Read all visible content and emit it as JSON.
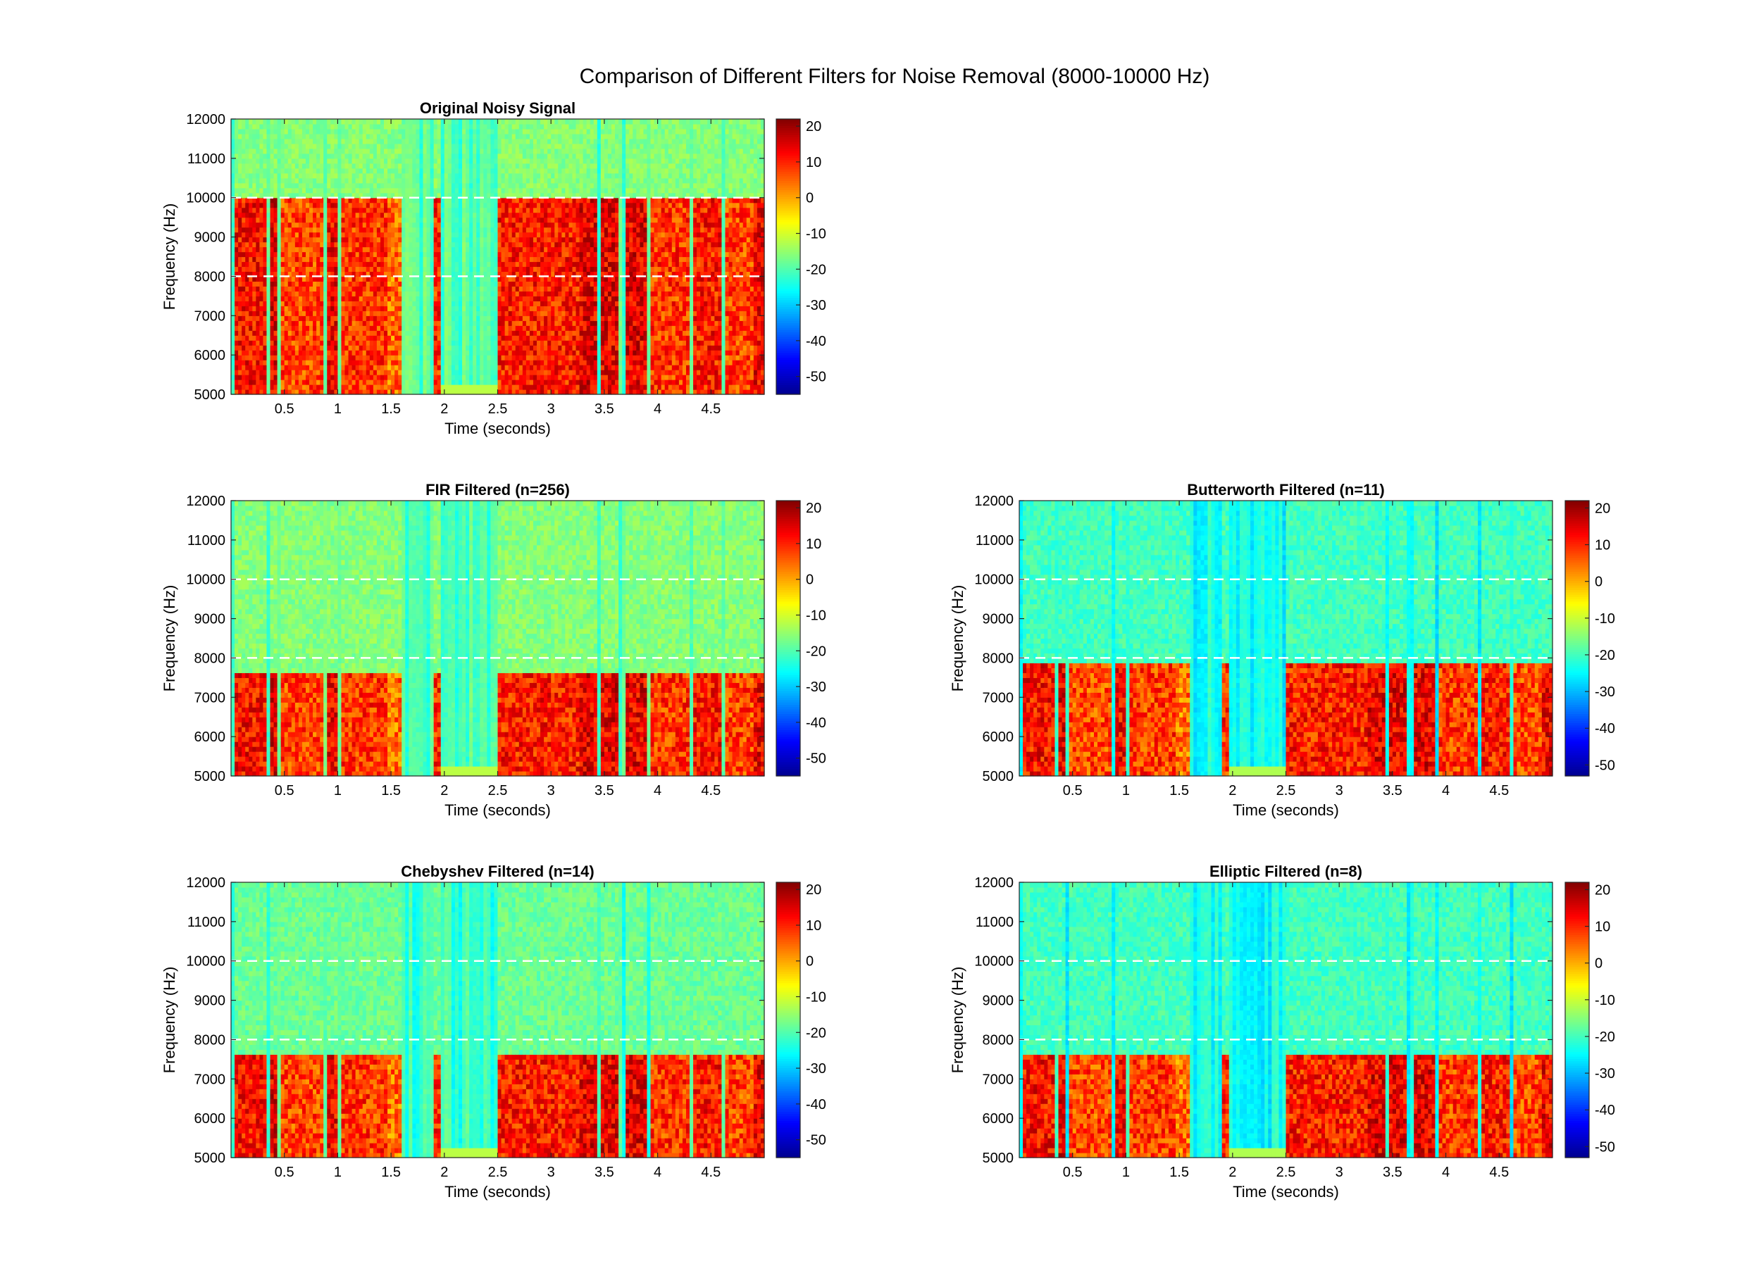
{
  "figure": {
    "title": "Comparison of Different Filters for Noise Removal (8000-10000 Hz)"
  },
  "colormap": [
    "#00008f",
    "#0000ff",
    "#0080ff",
    "#00ffff",
    "#80ff80",
    "#ffff00",
    "#ff8000",
    "#ff0000",
    "#800000"
  ],
  "chart_data": [
    {
      "type": "heatmap",
      "title": "Original Noisy Signal",
      "xlabel": "Time (seconds)",
      "ylabel": "Frequency (Hz)",
      "xlim": [
        0,
        5
      ],
      "ylim": [
        5000,
        12000
      ],
      "xticks": [
        0.5,
        1,
        1.5,
        2,
        2.5,
        3,
        3.5,
        4,
        4.5
      ],
      "xtick_labels": [
        "0.5",
        "1",
        "1.5",
        "2",
        "2.5",
        "3",
        "3.5",
        "4",
        "4.5"
      ],
      "yticks": [
        5000,
        6000,
        7000,
        8000,
        9000,
        10000,
        11000,
        12000
      ],
      "ytick_labels": [
        "5000",
        "6000",
        "7000",
        "8000",
        "9000",
        "10000",
        "11000",
        "12000"
      ],
      "colorbar": {
        "ticks": [
          20,
          10,
          0,
          -10,
          -20,
          -30,
          -40,
          -50
        ],
        "tick_labels": [
          "20",
          "10",
          "0",
          "-10",
          "-20",
          "-30",
          "-40",
          "-50"
        ],
        "range": [
          -55,
          22
        ]
      },
      "reference_lines_hz": [
        8000,
        10000
      ],
      "energy_band_top_hz": 10000,
      "background_db": -20
    },
    {
      "type": "heatmap",
      "title": "FIR Filtered (n=256)",
      "xlabel": "Time (seconds)",
      "ylabel": "Frequency (Hz)",
      "xlim": [
        0,
        5
      ],
      "ylim": [
        5000,
        12000
      ],
      "xticks": [
        0.5,
        1,
        1.5,
        2,
        2.5,
        3,
        3.5,
        4,
        4.5
      ],
      "xtick_labels": [
        "0.5",
        "1",
        "1.5",
        "2",
        "2.5",
        "3",
        "3.5",
        "4",
        "4.5"
      ],
      "yticks": [
        5000,
        6000,
        7000,
        8000,
        9000,
        10000,
        11000,
        12000
      ],
      "ytick_labels": [
        "5000",
        "6000",
        "7000",
        "8000",
        "9000",
        "10000",
        "11000",
        "12000"
      ],
      "colorbar": {
        "ticks": [
          20,
          10,
          0,
          -10,
          -20,
          -30,
          -40,
          -50
        ],
        "tick_labels": [
          "20",
          "10",
          "0",
          "-10",
          "-20",
          "-30",
          "-40",
          "-50"
        ],
        "range": [
          -55,
          22
        ]
      },
      "reference_lines_hz": [
        8000,
        10000
      ],
      "energy_band_top_hz": 7650,
      "background_db": -20
    },
    {
      "type": "heatmap",
      "title": "Butterworth Filtered (n=11)",
      "xlabel": "Time (seconds)",
      "ylabel": "Frequency (Hz)",
      "xlim": [
        0,
        5
      ],
      "ylim": [
        5000,
        12000
      ],
      "xticks": [
        0.5,
        1,
        1.5,
        2,
        2.5,
        3,
        3.5,
        4,
        4.5
      ],
      "xtick_labels": [
        "0.5",
        "1",
        "1.5",
        "2",
        "2.5",
        "3",
        "3.5",
        "4",
        "4.5"
      ],
      "yticks": [
        5000,
        6000,
        7000,
        8000,
        9000,
        10000,
        11000,
        12000
      ],
      "ytick_labels": [
        "5000",
        "6000",
        "7000",
        "8000",
        "9000",
        "10000",
        "11000",
        "12000"
      ],
      "colorbar": {
        "ticks": [
          20,
          10,
          0,
          -10,
          -20,
          -30,
          -40,
          -50
        ],
        "tick_labels": [
          "20",
          "10",
          "0",
          "-10",
          "-20",
          "-30",
          "-40",
          "-50"
        ],
        "range": [
          -53,
          22
        ]
      },
      "reference_lines_hz": [
        8000,
        10000
      ],
      "energy_band_top_hz": 7900,
      "background_db": -24
    },
    {
      "type": "heatmap",
      "title": "Chebyshev Filtered (n=14)",
      "xlabel": "Time (seconds)",
      "ylabel": "Frequency (Hz)",
      "xlim": [
        0,
        5
      ],
      "ylim": [
        5000,
        12000
      ],
      "xticks": [
        0.5,
        1,
        1.5,
        2,
        2.5,
        3,
        3.5,
        4,
        4.5
      ],
      "xtick_labels": [
        "0.5",
        "1",
        "1.5",
        "2",
        "2.5",
        "3",
        "3.5",
        "4",
        "4.5"
      ],
      "yticks": [
        5000,
        6000,
        7000,
        8000,
        9000,
        10000,
        11000,
        12000
      ],
      "ytick_labels": [
        "5000",
        "6000",
        "7000",
        "8000",
        "9000",
        "10000",
        "11000",
        "12000"
      ],
      "colorbar": {
        "ticks": [
          20,
          10,
          0,
          -10,
          -20,
          -30,
          -40,
          -50
        ],
        "tick_labels": [
          "20",
          "10",
          "0",
          "-10",
          "-20",
          "-30",
          "-40",
          "-50"
        ],
        "range": [
          -55,
          22
        ]
      },
      "reference_lines_hz": [
        8000,
        10000
      ],
      "energy_band_top_hz": 7600,
      "background_db": -22
    },
    {
      "type": "heatmap",
      "title": "Elliptic Filtered (n=8)",
      "xlabel": "Time (seconds)",
      "ylabel": "Frequency (Hz)",
      "xlim": [
        0,
        5
      ],
      "ylim": [
        5000,
        12000
      ],
      "xticks": [
        0.5,
        1,
        1.5,
        2,
        2.5,
        3,
        3.5,
        4,
        4.5
      ],
      "xtick_labels": [
        "0.5",
        "1",
        "1.5",
        "2",
        "2.5",
        "3",
        "3.5",
        "4",
        "4.5"
      ],
      "yticks": [
        5000,
        6000,
        7000,
        8000,
        9000,
        10000,
        11000,
        12000
      ],
      "ytick_labels": [
        "5000",
        "6000",
        "7000",
        "8000",
        "9000",
        "10000",
        "11000",
        "12000"
      ],
      "colorbar": {
        "ticks": [
          20,
          10,
          0,
          -10,
          -20,
          -30,
          -40,
          -50
        ],
        "tick_labels": [
          "20",
          "10",
          "0",
          "-10",
          "-20",
          "-30",
          "-40",
          "-50"
        ],
        "range": [
          -53,
          22
        ]
      },
      "reference_lines_hz": [
        8000,
        10000
      ],
      "energy_band_top_hz": 7600,
      "background_db": -24
    }
  ]
}
